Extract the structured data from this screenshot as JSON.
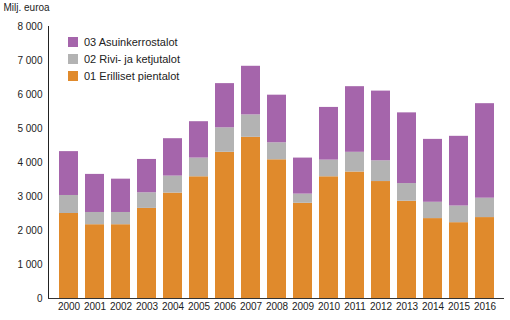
{
  "chart_data": {
    "type": "bar",
    "stacked": true,
    "y_label": "Milj. euroa",
    "categories": [
      "2000",
      "2001",
      "2002",
      "2003",
      "2004",
      "2005",
      "2006",
      "2007",
      "2008",
      "2009",
      "2010",
      "2011",
      "2012",
      "2013",
      "2014",
      "2015",
      "2016"
    ],
    "series": [
      {
        "name": "01 Erilliset pientalot",
        "color": "#e08a2c",
        "values": [
          2500,
          2170,
          2170,
          2650,
          3100,
          3580,
          4300,
          4740,
          4080,
          2800,
          3580,
          3720,
          3440,
          2860,
          2350,
          2230,
          2380
        ]
      },
      {
        "name": "02 Rivi- ja ketjutalot",
        "color": "#b3b3b3",
        "values": [
          530,
          360,
          360,
          460,
          500,
          550,
          720,
          660,
          500,
          270,
          490,
          580,
          610,
          520,
          480,
          490,
          570
        ]
      },
      {
        "name": "03 Asuinkerrostalot",
        "color": "#a565ab",
        "values": [
          1290,
          1120,
          980,
          980,
          1100,
          1070,
          1300,
          1430,
          1400,
          1060,
          1550,
          1930,
          2050,
          2080,
          1850,
          2050,
          2780
        ]
      }
    ],
    "ylim": [
      0,
      8000
    ],
    "yticks": [
      0,
      {
        "value": 1000,
        "label": "1 000"
      },
      {
        "value": 2000,
        "label": "2 000"
      },
      {
        "value": 3000,
        "label": "3 000"
      },
      {
        "value": 4000,
        "label": "4 000"
      },
      {
        "value": 5000,
        "label": "5 000"
      },
      {
        "value": 6000,
        "label": "6 000"
      },
      {
        "value": 7000,
        "label": "7 000"
      },
      {
        "value": 8000,
        "label": "8 000"
      }
    ],
    "grid": false,
    "legend": "top-left"
  }
}
